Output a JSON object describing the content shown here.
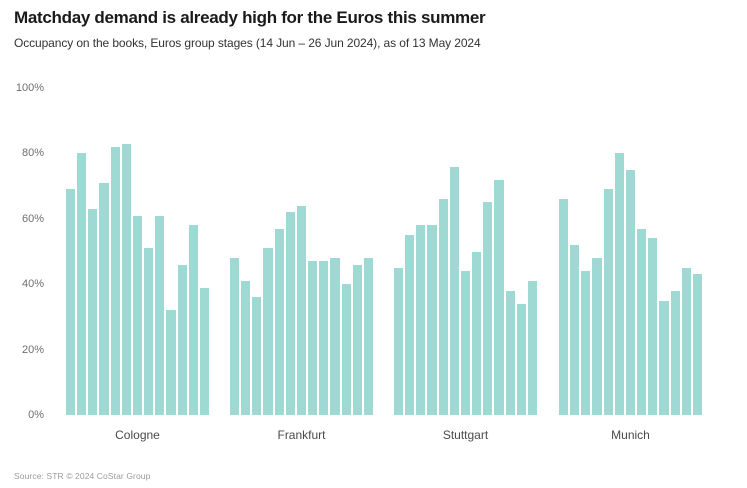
{
  "header": {
    "title": "Matchday demand is already high for the Euros this summer",
    "subtitle": "Occupancy on the books, Euros group stages (14 Jun – 26 Jun 2024), as of 13 May 2024"
  },
  "chart_data": {
    "type": "bar",
    "title": "Matchday demand is already high for the Euros this summer",
    "subtitle": "Occupancy on the books, Euros group stages (14 Jun – 26 Jun 2024), as of 13 May 2024",
    "categories": [
      "Cologne",
      "Frankfurt",
      "Stuttgart",
      "Munich"
    ],
    "bars_per_group": 13,
    "series": [
      {
        "name": "Cologne",
        "values": [
          69,
          80,
          63,
          71,
          82,
          83,
          61,
          51,
          61,
          32,
          46,
          58,
          39
        ]
      },
      {
        "name": "Frankfurt",
        "values": [
          48,
          41,
          36,
          51,
          57,
          62,
          64,
          47,
          47,
          48,
          40,
          46,
          48
        ]
      },
      {
        "name": "Stuttgart",
        "values": [
          45,
          55,
          58,
          58,
          66,
          76,
          44,
          50,
          65,
          72,
          38,
          34,
          41
        ]
      },
      {
        "name": "Munich",
        "values": [
          66,
          52,
          44,
          48,
          69,
          80,
          75,
          57,
          54,
          35,
          38,
          45,
          43
        ]
      }
    ],
    "ylim": [
      0,
      100
    ],
    "yticks": [
      0,
      20,
      40,
      60,
      80,
      100
    ],
    "ytick_labels": [
      "0%",
      "20%",
      "40%",
      "60%",
      "80%",
      "100%"
    ],
    "grid": false,
    "legend": false,
    "bar_color": "#9fd9d4"
  },
  "footer": {
    "source": "Source: STR © 2024 CoStar Group"
  }
}
